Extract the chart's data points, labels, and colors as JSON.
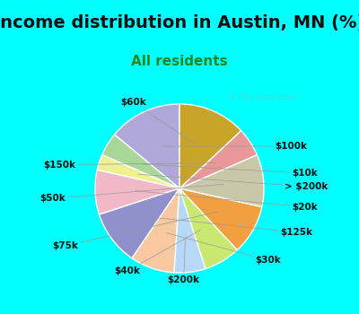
{
  "title": "Income distribution in Austin, MN (%)",
  "subtitle": "All residents",
  "watermark": "© City-Data.com",
  "background_top": "#00ffff",
  "background_chart": "#dff0e8",
  "labels": [
    "$100k",
    "$10k",
    "> $200k",
    "$20k",
    "$125k",
    "$30k",
    "$200k",
    "$40k",
    "$75k",
    "$50k",
    "$150k",
    "$60k"
  ],
  "values": [
    14.0,
    4.5,
    3.0,
    8.5,
    10.5,
    8.5,
    6.0,
    7.0,
    9.5,
    10.0,
    5.5,
    13.0
  ],
  "colors": [
    "#b0a8d8",
    "#a8d898",
    "#f0f090",
    "#f0b8c8",
    "#9090cc",
    "#f8c8a0",
    "#b8d8f8",
    "#c8e870",
    "#f0a040",
    "#c8c8a8",
    "#e89898",
    "#c8a428"
  ],
  "startangle": 90,
  "title_fontsize": 14,
  "subtitle_fontsize": 11,
  "subtitle_color": "#228822",
  "label_fontsize": 7.5,
  "title_color": "#111111"
}
